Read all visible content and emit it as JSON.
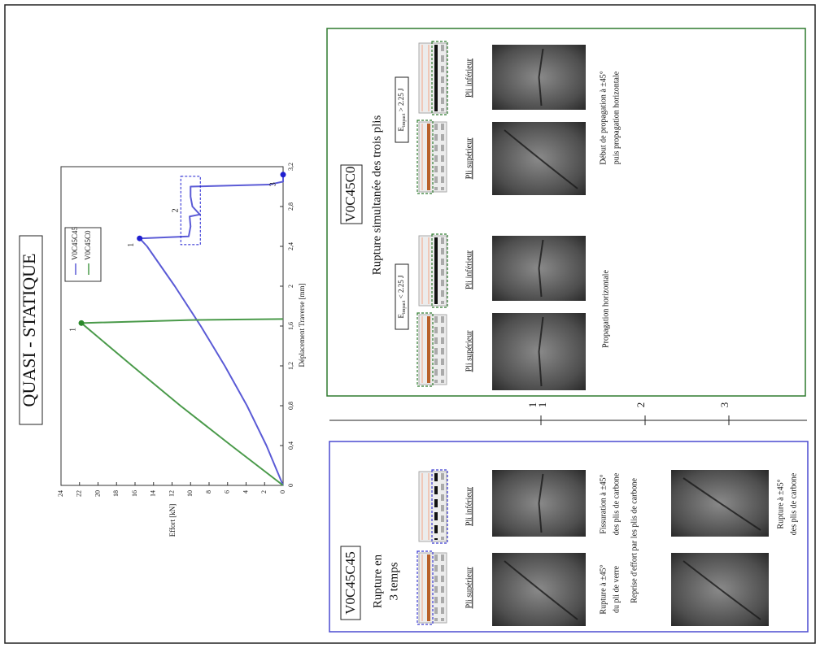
{
  "title": "QUASI - STATIQUE",
  "chart_data": {
    "type": "line",
    "x_label": "Déplacement Traverse [mm]",
    "y_label": "Effort [kN]",
    "xlim": [
      0,
      3.2
    ],
    "xticks": [
      0,
      {
        "value": 0.4,
        "label": "0,4"
      },
      {
        "value": 0.8,
        "label": "0,8"
      },
      {
        "value": 1.2,
        "label": "1,2"
      },
      {
        "value": 1.6,
        "label": "1,6"
      },
      2,
      {
        "value": 2.4,
        "label": "2,4"
      },
      {
        "value": 2.8,
        "label": "2,8"
      },
      {
        "value": 3.2,
        "label": "3,2"
      }
    ],
    "ylim": [
      0,
      24
    ],
    "yticks": [
      0,
      2,
      4,
      6,
      8,
      10,
      12,
      14,
      16,
      18,
      20,
      22,
      24
    ],
    "series": [
      {
        "name": "V0C45C45",
        "color": "#5b5bd6",
        "x": [
          0,
          0.4,
          0.8,
          1.2,
          1.6,
          2.0,
          2.4,
          2.48,
          2.5,
          2.6,
          2.7,
          2.72,
          2.8,
          2.9,
          3.0,
          3.02,
          3.05,
          3.12
        ],
        "values": [
          0,
          1.8,
          3.9,
          6.3,
          8.9,
          11.7,
          14.7,
          15.5,
          10.2,
          10.0,
          10.1,
          9.0,
          9.8,
          10.0,
          10.0,
          1.5,
          0,
          0
        ]
      },
      {
        "name": "V0C45C0",
        "color": "#4a9a4a",
        "x": [
          0,
          0.4,
          0.8,
          1.2,
          1.63,
          1.66,
          1.67
        ],
        "values": [
          0,
          5.6,
          11.1,
          16.3,
          21.8,
          10,
          0
        ]
      }
    ],
    "annotations": [
      {
        "label": "1",
        "x": 2.48,
        "y": 15.5,
        "color": "#1f1fd0"
      },
      {
        "label": "2",
        "x": 2.76,
        "y": 10,
        "color": "#1f1fd0"
      },
      {
        "label": "3",
        "x": 3.12,
        "y": 0,
        "color": "#1f1fd0"
      },
      {
        "label": "1",
        "x": 1.63,
        "y": 21.8,
        "color": "#2a8a2a"
      }
    ]
  },
  "timeline": {
    "labels": [
      "1",
      "1",
      "2",
      "3"
    ]
  },
  "panels": [
    {
      "title": "V0C45C45",
      "subtitle": [
        "Rupture en",
        "3 temps"
      ],
      "ply_labels": [
        "Pli supérieur",
        "Pli inférieur"
      ],
      "captions": [
        [
          "Rupture à ±45°",
          "du pli de verre"
        ],
        [
          "Fissuration à ±45°",
          "des plis de carbone"
        ],
        [
          "Reprise d'effort par les plis de carbone"
        ],
        [
          "Rupture à ±45°",
          "des plis de carbone"
        ]
      ]
    },
    {
      "title": "V0C45C0",
      "subtitle": [
        "Rupture simultanée des trois plis"
      ],
      "conditions": [
        {
          "symbol": "E",
          "subscript": "impact",
          "relation": " < 2.25 J"
        },
        {
          "symbol": "E",
          "subscript": "impact",
          "relation": " > 2.25 J"
        }
      ],
      "ply_labels": [
        "Pli supérieur",
        "Pli inférieur",
        "Pli supérieur",
        "Pli inférieur"
      ],
      "captions": [
        [
          "Propagation horizontale"
        ],
        [
          "Début de propagation à ±45°",
          "puis propagation horizontale"
        ]
      ]
    }
  ]
}
